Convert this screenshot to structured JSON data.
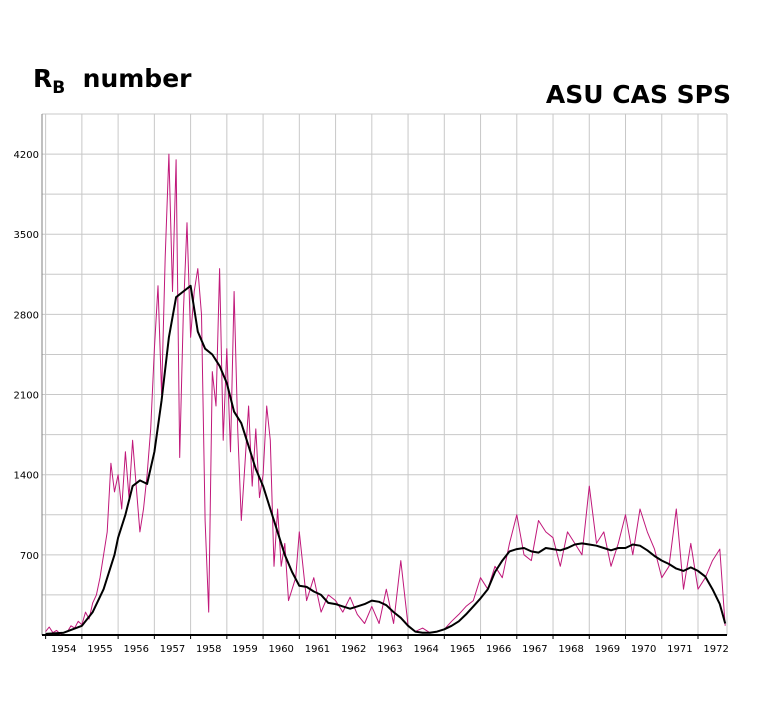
{
  "header": {
    "title_main": "R",
    "title_sub": "B",
    "title_rest": "number",
    "source_label": "ASU CAS   SPS"
  },
  "chart_data": {
    "type": "line",
    "title": "RB number",
    "xlabel": "",
    "ylabel": "",
    "xlim": [
      1953.9,
      1972.8
    ],
    "ylim": [
      0,
      4550
    ],
    "x_ticks": [
      "1954",
      "1955",
      "1956",
      "1957",
      "1958",
      "1959",
      "1960",
      "1961",
      "1962",
      "1963",
      "1964",
      "1965",
      "1966",
      "1967",
      "1968",
      "1969",
      "1970",
      "1971",
      "1972"
    ],
    "y_ticks": [
      700,
      1400,
      2100,
      2800,
      3500,
      4200
    ],
    "grid": true,
    "colors": {
      "monthly": "#c0187a",
      "smoothed": "#000000",
      "grid": "#c8c8c8"
    },
    "series": [
      {
        "x": [
          1954.0,
          1954.1,
          1954.2,
          1954.3,
          1954.4,
          1954.5,
          1954.6,
          1954.7,
          1954.8,
          1954.9,
          1955.0,
          1955.1,
          1955.2,
          1955.3,
          1955.4,
          1955.5,
          1955.6,
          1955.7,
          1955.8,
          1955.9,
          1956.0,
          1956.1,
          1956.2,
          1956.3,
          1956.4,
          1956.5,
          1956.6,
          1956.7,
          1956.8,
          1956.9,
          1957.0,
          1957.1,
          1957.2,
          1957.3,
          1957.4,
          1957.5,
          1957.6,
          1957.7,
          1957.8,
          1957.9,
          1958.0,
          1958.1,
          1958.2,
          1958.3,
          1958.4,
          1958.5,
          1958.6,
          1958.7,
          1958.8,
          1958.9,
          1959.0,
          1959.1,
          1959.2,
          1959.3,
          1959.4,
          1959.5,
          1959.6,
          1959.7,
          1959.8,
          1959.9,
          1960.0,
          1960.1,
          1960.2,
          1960.3,
          1960.4,
          1960.5,
          1960.6,
          1960.7,
          1960.8,
          1960.9,
          1961.0,
          1961.2,
          1961.4,
          1961.6,
          1961.8,
          1962.0,
          1962.2,
          1962.4,
          1962.6,
          1962.8,
          1963.0,
          1963.2,
          1963.4,
          1963.6,
          1963.8,
          1964.0,
          1964.2,
          1964.4,
          1964.6,
          1964.8,
          1965.0,
          1965.2,
          1965.4,
          1965.6,
          1965.8,
          1966.0,
          1966.2,
          1966.4,
          1966.6,
          1966.8,
          1967.0,
          1967.2,
          1967.4,
          1967.6,
          1967.8,
          1968.0,
          1968.2,
          1968.4,
          1968.6,
          1968.8,
          1969.0,
          1969.2,
          1969.4,
          1969.6,
          1969.8,
          1970.0,
          1970.2,
          1970.4,
          1970.6,
          1970.8,
          1971.0,
          1971.2,
          1971.4,
          1971.6,
          1971.8,
          1972.0,
          1972.2,
          1972.4,
          1972.6,
          1972.75
        ],
        "y": [
          30,
          70,
          20,
          40,
          10,
          20,
          30,
          80,
          60,
          120,
          90,
          200,
          140,
          280,
          350,
          500,
          700,
          900,
          1500,
          1250,
          1400,
          1100,
          1600,
          1200,
          1700,
          1300,
          900,
          1100,
          1400,
          1800,
          2500,
          3050,
          2100,
          3300,
          4200,
          3000,
          4150,
          1550,
          2800,
          3600,
          2600,
          3000,
          3200,
          2800,
          1000,
          200,
          2300,
          2000,
          3200,
          1700,
          2500,
          1600,
          3000,
          1800,
          1000,
          1500,
          2000,
          1300,
          1800,
          1200,
          1400,
          2000,
          1700,
          600,
          1100,
          600,
          800,
          300,
          400,
          500,
          900,
          300,
          500,
          200,
          350,
          300,
          200,
          330,
          180,
          100,
          250,
          100,
          400,
          100,
          650,
          80,
          30,
          60,
          20,
          30,
          50,
          120,
          180,
          250,
          300,
          500,
          400,
          600,
          500,
          800,
          1050,
          700,
          650,
          1000,
          900,
          850,
          600,
          900,
          800,
          700,
          1300,
          800,
          900,
          600,
          800,
          1050,
          700,
          1100,
          900,
          750,
          500,
          600,
          1100,
          400,
          800,
          400,
          500,
          650,
          750,
          80
        ],
        "name": ""
      },
      {
        "x": [
          1954.0,
          1954.5,
          1955.0,
          1955.3,
          1955.6,
          1955.9,
          1956.0,
          1956.2,
          1956.4,
          1956.6,
          1956.8,
          1957.0,
          1957.2,
          1957.4,
          1957.6,
          1957.8,
          1958.0,
          1958.2,
          1958.4,
          1958.6,
          1958.8,
          1959.0,
          1959.2,
          1959.4,
          1959.6,
          1959.8,
          1960.0,
          1960.2,
          1960.4,
          1960.6,
          1960.8,
          1961.0,
          1961.2,
          1961.4,
          1961.6,
          1961.8,
          1962.0,
          1962.2,
          1962.4,
          1962.6,
          1962.8,
          1963.0,
          1963.2,
          1963.4,
          1963.6,
          1963.8,
          1964.0,
          1964.2,
          1964.4,
          1964.6,
          1964.8,
          1965.0,
          1965.2,
          1965.4,
          1965.6,
          1965.8,
          1966.0,
          1966.2,
          1966.4,
          1966.6,
          1966.8,
          1967.0,
          1967.2,
          1967.4,
          1967.6,
          1967.8,
          1968.0,
          1968.2,
          1968.4,
          1968.6,
          1968.8,
          1969.0,
          1969.2,
          1969.4,
          1969.6,
          1969.8,
          1970.0,
          1970.2,
          1970.4,
          1970.6,
          1970.8,
          1971.0,
          1971.2,
          1971.4,
          1971.6,
          1971.8,
          1972.0,
          1972.2,
          1972.4,
          1972.6,
          1972.75
        ],
        "y": [
          10,
          20,
          80,
          200,
          400,
          700,
          850,
          1050,
          1300,
          1350,
          1320,
          1600,
          2050,
          2600,
          2950,
          3000,
          3050,
          2650,
          2500,
          2450,
          2350,
          2200,
          1950,
          1850,
          1650,
          1450,
          1300,
          1100,
          900,
          700,
          550,
          430,
          420,
          380,
          350,
          280,
          270,
          250,
          230,
          250,
          270,
          300,
          290,
          260,
          200,
          150,
          80,
          30,
          20,
          20,
          30,
          50,
          80,
          120,
          180,
          250,
          320,
          400,
          550,
          650,
          730,
          750,
          760,
          730,
          720,
          760,
          750,
          740,
          760,
          790,
          800,
          790,
          780,
          760,
          740,
          760,
          760,
          790,
          780,
          740,
          690,
          650,
          620,
          580,
          560,
          590,
          560,
          510,
          400,
          270,
          100
        ],
        "name": ""
      }
    ]
  }
}
